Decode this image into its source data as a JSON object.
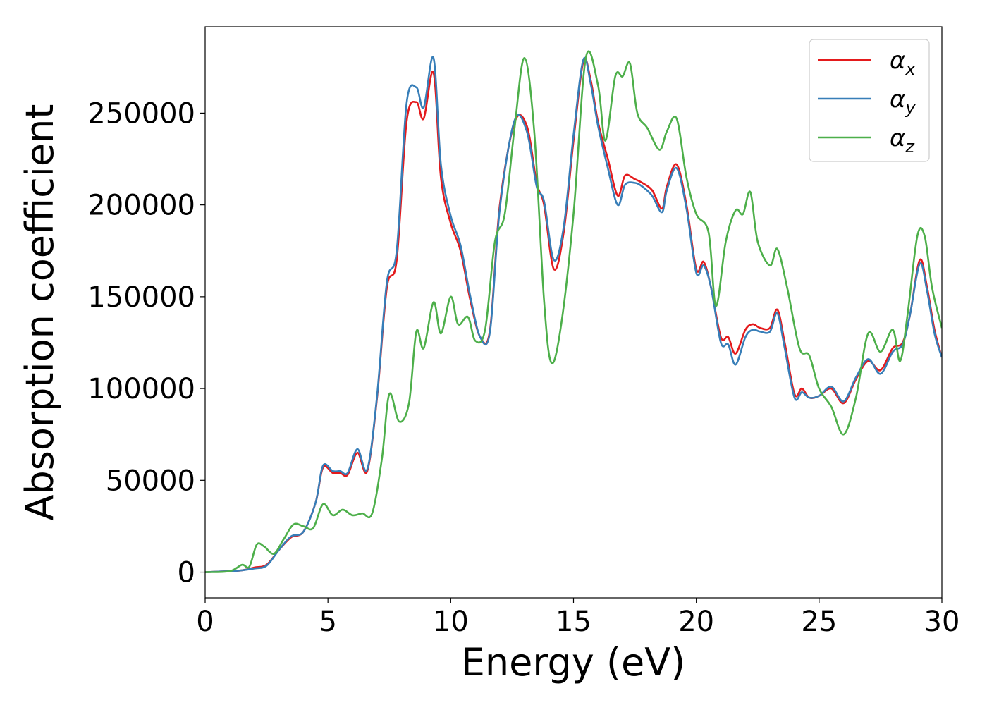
{
  "chart_data": {
    "type": "line",
    "xlabel": "Energy (eV)",
    "ylabel": "Absorption coefficient",
    "xlim": [
      0,
      30
    ],
    "ylim": [
      -14000,
      297000
    ],
    "xticks": [
      0,
      5,
      10,
      15,
      20,
      25,
      30
    ],
    "xtick_labels": [
      "0",
      "5",
      "10",
      "15",
      "20",
      "25",
      "30"
    ],
    "yticks": [
      0,
      50000,
      100000,
      150000,
      200000,
      250000
    ],
    "ytick_labels": [
      "0",
      "50000",
      "100000",
      "150000",
      "200000",
      "250000"
    ],
    "grid": false,
    "legend_position": "top-right",
    "series": [
      {
        "name": "α",
        "subscript": "x",
        "color": "#e41a1c",
        "x": [
          0,
          1,
          1.5,
          2,
          2.5,
          3,
          3.5,
          4,
          4.5,
          4.8,
          5.2,
          5.5,
          5.8,
          6.2,
          6.6,
          7,
          7.4,
          7.8,
          8.2,
          8.6,
          8.9,
          9.3,
          9.6,
          10,
          10.4,
          10.8,
          11.2,
          11.6,
          12,
          12.6,
          13.1,
          13.5,
          13.8,
          14.2,
          14.6,
          15,
          15.4,
          15.7,
          16,
          16.4,
          16.8,
          17.1,
          17.5,
          17.8,
          18.2,
          18.6,
          18.8,
          19.2,
          19.6,
          20,
          20.3,
          20.6,
          21,
          21.3,
          21.6,
          22,
          22.3,
          22.6,
          23,
          23.3,
          23.6,
          24,
          24.3,
          24.6,
          25,
          25.5,
          26,
          26.5,
          27,
          27.5,
          28,
          28.4,
          28.7,
          29.1,
          29.4,
          29.7,
          30
        ],
        "y": [
          0,
          500,
          1000,
          2500,
          4000,
          12000,
          19000,
          22000,
          38000,
          57000,
          54000,
          54000,
          53000,
          65000,
          55000,
          95000,
          155000,
          170000,
          245000,
          256000,
          247000,
          272000,
          215000,
          190000,
          175000,
          148000,
          128000,
          132000,
          200000,
          245000,
          243000,
          212000,
          200000,
          165000,
          185000,
          235000,
          278000,
          268000,
          245000,
          225000,
          205000,
          216000,
          214000,
          212000,
          208000,
          198000,
          210000,
          222000,
          200000,
          165000,
          169000,
          155000,
          128000,
          128000,
          119000,
          132000,
          135000,
          133000,
          133000,
          143000,
          125000,
          97000,
          100000,
          95000,
          96000,
          100000,
          92000,
          105000,
          115000,
          110000,
          122000,
          125000,
          140000,
          170000,
          155000,
          132000,
          117000
        ]
      },
      {
        "name": "α",
        "subscript": "y",
        "color": "#377eb8",
        "x": [
          0,
          1,
          1.5,
          2,
          2.5,
          3,
          3.5,
          4,
          4.5,
          4.8,
          5.2,
          5.5,
          5.8,
          6.2,
          6.6,
          7,
          7.4,
          7.8,
          8.2,
          8.6,
          8.9,
          9.3,
          9.6,
          10,
          10.4,
          10.8,
          11.2,
          11.6,
          12,
          12.6,
          13.1,
          13.5,
          13.8,
          14.2,
          14.6,
          15,
          15.4,
          15.7,
          16,
          16.4,
          16.8,
          17.1,
          17.5,
          17.8,
          18.2,
          18.6,
          18.8,
          19.2,
          19.6,
          20,
          20.3,
          20.6,
          21,
          21.3,
          21.6,
          22,
          22.3,
          22.6,
          23,
          23.3,
          23.6,
          24,
          24.3,
          24.6,
          25,
          25.5,
          26,
          26.5,
          27,
          27.5,
          28,
          28.4,
          28.7,
          29.1,
          29.4,
          29.7,
          30
        ],
        "y": [
          0,
          500,
          1000,
          2000,
          3500,
          12000,
          19500,
          22000,
          38000,
          58000,
          55000,
          55000,
          54000,
          67000,
          56000,
          96000,
          158000,
          175000,
          255000,
          264000,
          253000,
          280000,
          222000,
          194000,
          178000,
          150000,
          128000,
          131000,
          198000,
          246000,
          240000,
          210000,
          202000,
          170000,
          188000,
          238000,
          279000,
          266000,
          243000,
          220000,
          200000,
          211000,
          212000,
          210000,
          205000,
          196000,
          208000,
          220000,
          198000,
          163000,
          167000,
          155000,
          125000,
          124000,
          113000,
          128000,
          132000,
          131000,
          131000,
          141000,
          122000,
          95000,
          98000,
          95000,
          96000,
          101000,
          93000,
          106000,
          116000,
          108000,
          120000,
          124000,
          140000,
          168000,
          153000,
          130000,
          117000
        ]
      },
      {
        "name": "α",
        "subscript": "z",
        "color": "#4daf4a",
        "x": [
          0,
          1,
          1.5,
          1.8,
          2.1,
          2.4,
          2.8,
          3.2,
          3.6,
          4,
          4.4,
          4.8,
          5.2,
          5.6,
          6,
          6.4,
          6.8,
          7.2,
          7.5,
          7.9,
          8.3,
          8.6,
          8.9,
          9.3,
          9.6,
          10,
          10.3,
          10.7,
          11,
          11.4,
          11.8,
          12.2,
          12.6,
          13,
          13.4,
          13.8,
          14.1,
          14.5,
          15,
          15.5,
          16,
          16.3,
          16.7,
          17,
          17.3,
          17.6,
          18,
          18.5,
          18.8,
          19.2,
          19.6,
          20,
          20.5,
          20.8,
          21.2,
          21.6,
          21.9,
          22.2,
          22.5,
          23,
          23.3,
          23.7,
          24.2,
          24.6,
          25,
          25.5,
          26,
          26.5,
          27,
          27.5,
          28,
          28.3,
          28.6,
          29,
          29.3,
          29.6,
          30
        ],
        "y": [
          0,
          500,
          4000,
          3000,
          15000,
          14000,
          10000,
          18000,
          26000,
          25000,
          24000,
          37000,
          31000,
          34000,
          31000,
          32000,
          32000,
          62000,
          97000,
          82000,
          92000,
          131000,
          122000,
          147000,
          130000,
          150000,
          135000,
          139000,
          126000,
          132000,
          180000,
          195000,
          242000,
          280000,
          240000,
          148000,
          114000,
          135000,
          195000,
          280000,
          265000,
          235000,
          270000,
          270000,
          277000,
          250000,
          242000,
          230000,
          240000,
          247000,
          215000,
          195000,
          185000,
          145000,
          180000,
          197000,
          195000,
          207000,
          180000,
          167000,
          176000,
          155000,
          122000,
          118000,
          100000,
          90000,
          75000,
          95000,
          130000,
          120000,
          132000,
          115000,
          140000,
          183000,
          183000,
          155000,
          133000
        ]
      }
    ]
  }
}
